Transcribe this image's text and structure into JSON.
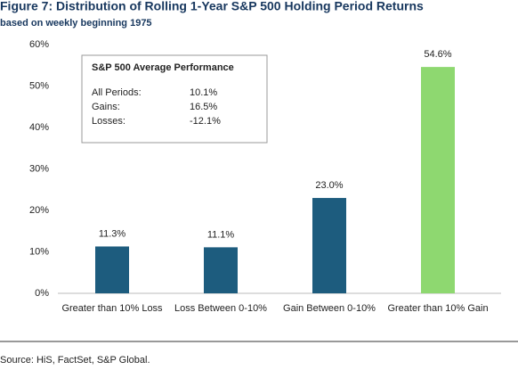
{
  "chart_data": {
    "type": "bar",
    "title": "Figure 7: Distribution of Rolling 1-Year S&P 500 Holding Period Returns",
    "subtitle": "based on weekly beginning 1975",
    "categories": [
      "Greater than 10% Loss",
      "Loss Between 0-10%",
      "Gain Between 0-10%",
      "Greater than 10% Gain"
    ],
    "values": [
      11.3,
      11.1,
      23.0,
      54.6
    ],
    "value_labels": [
      "11.3%",
      "11.1%",
      "23.0%",
      "54.6%"
    ],
    "colors": [
      "#1d5c7e",
      "#1d5c7e",
      "#1d5c7e",
      "#8ed870"
    ],
    "ylim": [
      0,
      60
    ],
    "yticks": [
      {
        "value": 0,
        "label": "0%"
      },
      {
        "value": 10,
        "label": "10%"
      },
      {
        "value": 20,
        "label": "20%"
      },
      {
        "value": 30,
        "label": "30%"
      },
      {
        "value": 40,
        "label": "40%"
      },
      {
        "value": 50,
        "label": "50%"
      },
      {
        "value": 60,
        "label": "60%"
      }
    ],
    "grid": false,
    "annotation": {
      "title": "S&P 500 Average Performance",
      "rows": [
        [
          "All Periods:",
          "10.1%"
        ],
        [
          "Gains:",
          "16.5%"
        ],
        [
          "Losses:",
          "-12.1%"
        ]
      ]
    },
    "source": "Source: HiS, FactSet, S&P Global."
  }
}
